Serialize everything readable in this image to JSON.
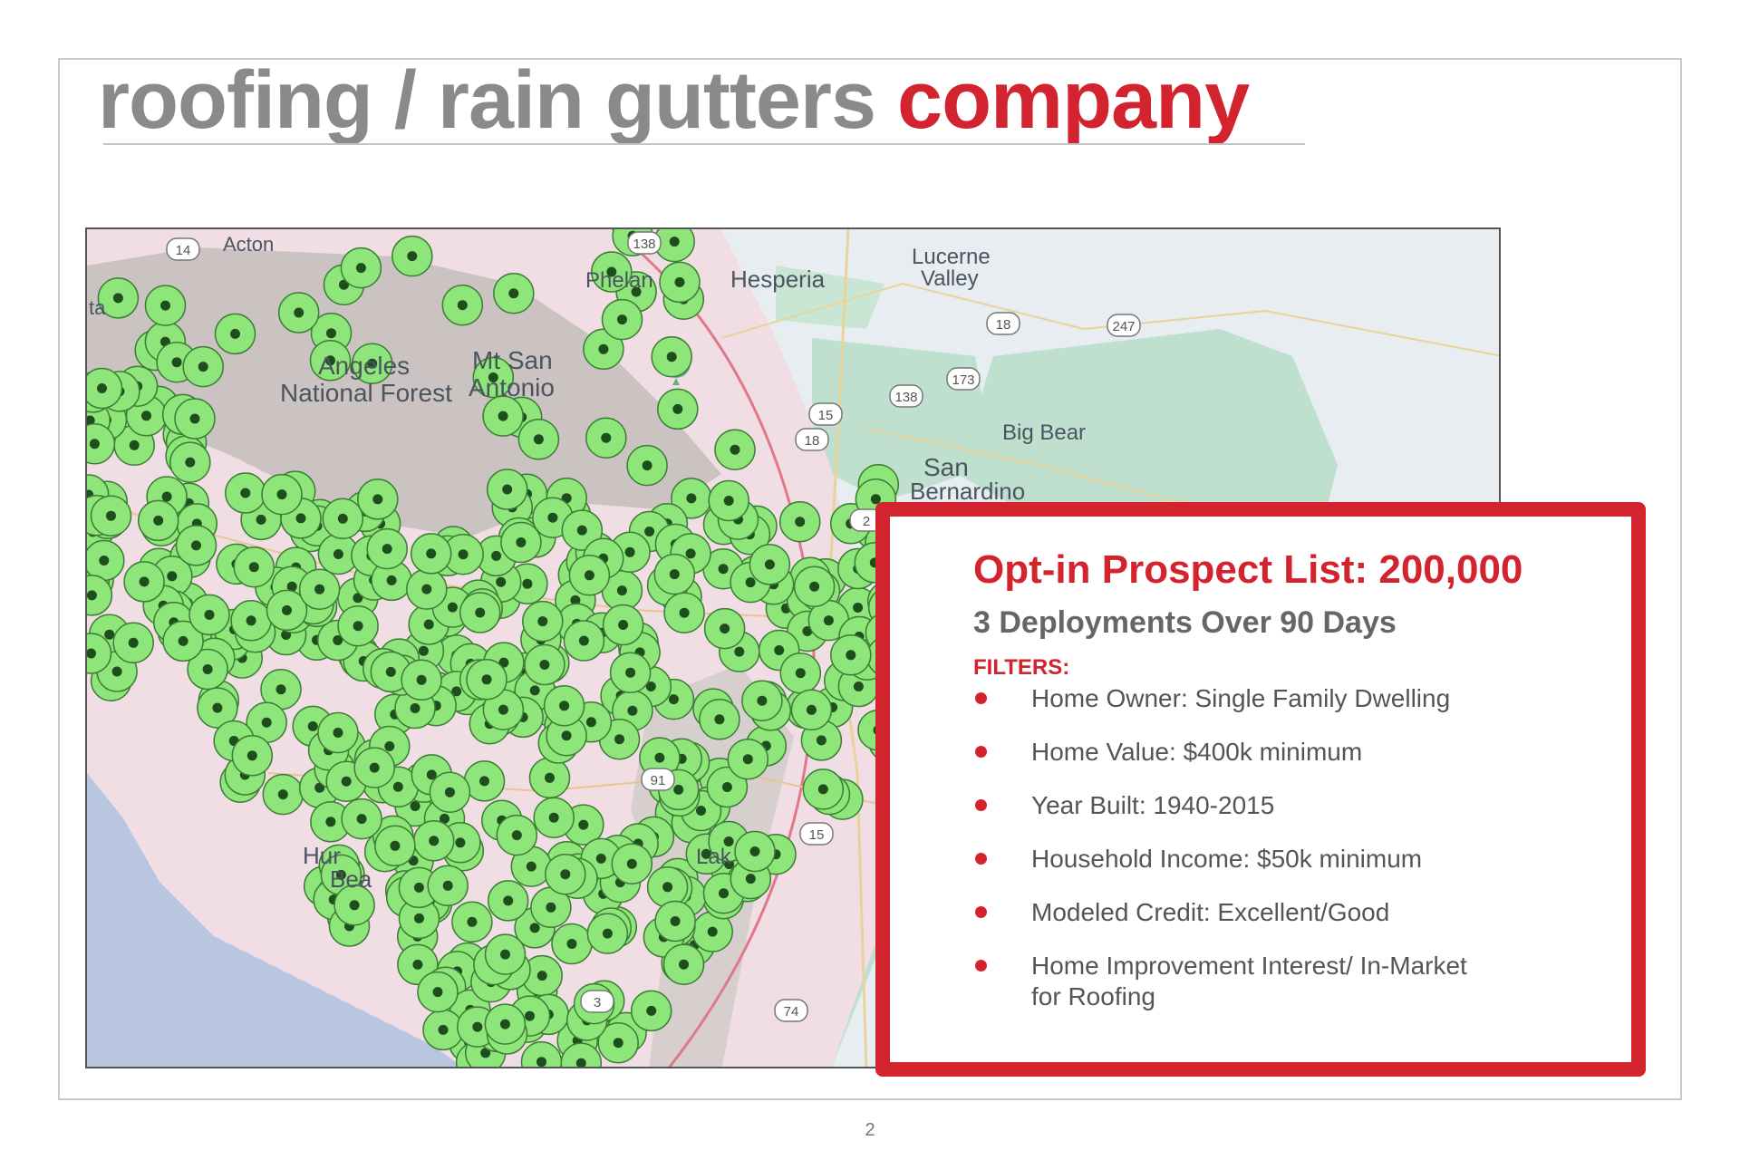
{
  "slide": {
    "title_gray": "roofing / rain gutters",
    "title_red": "company",
    "page_number": "2"
  },
  "map": {
    "place_labels": [
      "Hesperia",
      "Lucerne",
      "Valley",
      "Phelan",
      "Angeles",
      "National Forest",
      "Mt San",
      "Antonio",
      "Big Bear",
      "San",
      "Bernardino",
      "Hur",
      "Bea",
      "Lak",
      "Acton",
      "ta"
    ],
    "route_shields": [
      "14",
      "138",
      "18",
      "247",
      "173",
      "138",
      "18",
      "15",
      "15",
      "91",
      "74",
      "2",
      "3"
    ],
    "marker_color": "#8ee67a",
    "marker_center_color": "#1e4d1e",
    "radius_color": "#e0788a",
    "mountain-icon": "mountain-peak-icon"
  },
  "card": {
    "title": "Opt-in Prospect List: 200,000",
    "subtitle": "3 Deployments Over 90 Days",
    "filters_heading": "FILTERS:",
    "filters": [
      {
        "line1": "Home Owner: Single Family Dwelling",
        "line2": ""
      },
      {
        "line1": "Home Value: $400k minimum",
        "line2": ""
      },
      {
        "line1": "Year Built: 1940-2015",
        "line2": ""
      },
      {
        "line1": "Household Income: $50k minimum",
        "line2": ""
      },
      {
        "line1": "Modeled Credit: Excellent/Good",
        "line2": ""
      },
      {
        "line1": "Home Improvement Interest/ In-Market",
        "line2": "for Roofing"
      }
    ],
    "accent_color": "#d2232f"
  }
}
